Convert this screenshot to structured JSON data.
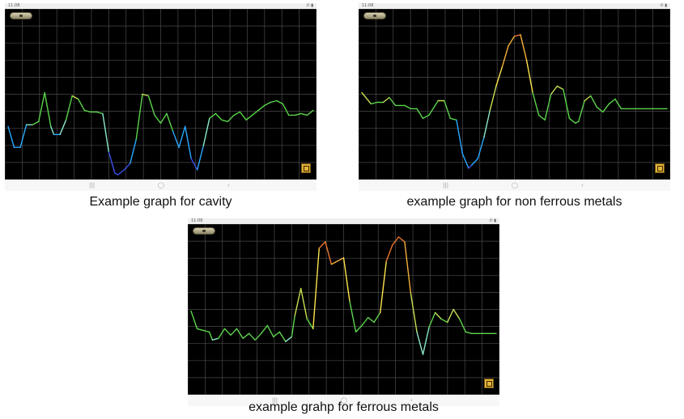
{
  "panels": [
    {
      "id": "cavity",
      "caption": "Example graph for cavity",
      "status": {
        "time": "11:08",
        "system": "✆ ▮"
      },
      "nav": {
        "recent": "|||",
        "home": "◯",
        "back": "‹"
      },
      "chart_data": {
        "type": "line",
        "title": "",
        "xlabel": "",
        "ylabel": "",
        "grid": true,
        "xlim": [
          0,
          100
        ],
        "ylim": [
          0,
          100
        ],
        "x": [
          0,
          2,
          4,
          6,
          8,
          10,
          12,
          14,
          15,
          17,
          19,
          21,
          23,
          25,
          27,
          29,
          31,
          33,
          35,
          36,
          38,
          40,
          42,
          44,
          46,
          48,
          50,
          52,
          54,
          56,
          58,
          60,
          62,
          64,
          66,
          68,
          70,
          72,
          74,
          76,
          78,
          80,
          82,
          84,
          86,
          88,
          90,
          92,
          94,
          96,
          98,
          100
        ],
        "y": [
          30,
          17,
          17,
          31,
          31,
          33,
          51,
          30,
          25,
          25,
          34,
          49,
          47,
          40,
          39,
          39,
          38,
          14,
          1,
          0,
          3,
          7,
          22,
          50,
          49,
          37,
          32,
          38,
          27,
          17,
          30,
          10,
          3,
          18,
          35,
          38,
          34,
          33,
          37,
          39,
          34,
          37,
          40,
          43,
          45,
          46,
          44,
          37,
          37,
          38,
          37,
          40
        ],
        "colors": [
          "#3a4fe8",
          "#29a8ff",
          "#8be8c8",
          "#5ad44a",
          "#c8e050",
          "#ffe34d",
          "#f7b03a",
          "#e8762d"
        ]
      }
    },
    {
      "id": "non-ferrous",
      "caption": "example graph for non ferrous metals",
      "status": {
        "time": "11:08",
        "system": "✆ ▮"
      },
      "nav": {
        "recent": "|||",
        "home": "◯",
        "back": "‹"
      },
      "chart_data": {
        "type": "line",
        "title": "",
        "xlabel": "",
        "ylabel": "",
        "grid": true,
        "xlim": [
          0,
          100
        ],
        "ylim": [
          0,
          100
        ],
        "x": [
          0,
          3,
          5,
          7,
          9,
          11,
          14,
          16,
          18,
          20,
          22,
          25,
          27,
          29,
          31,
          33,
          35,
          36,
          38,
          40,
          42,
          44,
          46,
          48,
          50,
          52,
          54,
          56,
          58,
          60,
          62,
          64,
          66,
          68,
          70,
          71,
          73,
          75,
          77,
          79,
          81,
          83,
          85,
          87,
          89,
          91,
          93,
          95,
          97,
          100
        ],
        "y": [
          51,
          44,
          45,
          45,
          48,
          43,
          43,
          41,
          41,
          35,
          37,
          46,
          46,
          35,
          34,
          13,
          4,
          6,
          10,
          23,
          40,
          55,
          67,
          80,
          86,
          87,
          71,
          51,
          37,
          34,
          50,
          55,
          53,
          35,
          32,
          33,
          46,
          49,
          42,
          39,
          44,
          47,
          41,
          41,
          41,
          41,
          41,
          41,
          41,
          41
        ],
        "colors": [
          "#3a4fe8",
          "#29a8ff",
          "#8be8c8",
          "#5ad44a",
          "#c8e050",
          "#ffe34d",
          "#f7b03a",
          "#e8762d"
        ]
      }
    },
    {
      "id": "ferrous",
      "caption": "example grahp for ferrous metals",
      "status": {
        "time": "11:08",
        "system": "✆ ▮"
      },
      "nav": {
        "recent": "|||",
        "home": "◯",
        "back": "‹"
      },
      "chart_data": {
        "type": "line",
        "title": "",
        "xlabel": "",
        "ylabel": "",
        "grid": true,
        "xlim": [
          0,
          100
        ],
        "ylim": [
          0,
          100
        ],
        "x": [
          0,
          2,
          4,
          6,
          7,
          9,
          11,
          13,
          15,
          17,
          19,
          21,
          23,
          25,
          27,
          29,
          31,
          33,
          34,
          36,
          38,
          40,
          42,
          44,
          46,
          48,
          50,
          52,
          54,
          56,
          58,
          60,
          62,
          64,
          66,
          68,
          70,
          72,
          74,
          76,
          78,
          80,
          82,
          84,
          86,
          88,
          90,
          92,
          94,
          96,
          98,
          100
        ],
        "y": [
          49,
          38,
          37,
          36,
          31,
          32,
          38,
          34,
          38,
          32,
          35,
          31,
          35,
          40,
          33,
          36,
          30,
          33,
          46,
          63,
          44,
          38,
          88,
          92,
          78,
          80,
          82,
          55,
          36,
          40,
          45,
          42,
          48,
          80,
          90,
          95,
          92,
          60,
          36,
          22,
          39,
          48,
          44,
          42,
          50,
          44,
          36,
          35,
          35,
          35,
          35,
          35
        ],
        "colors": [
          "#3a4fe8",
          "#29a8ff",
          "#8be8c8",
          "#5ad44a",
          "#c8e050",
          "#ffe34d",
          "#f7b03a",
          "#e8762d"
        ]
      }
    }
  ]
}
